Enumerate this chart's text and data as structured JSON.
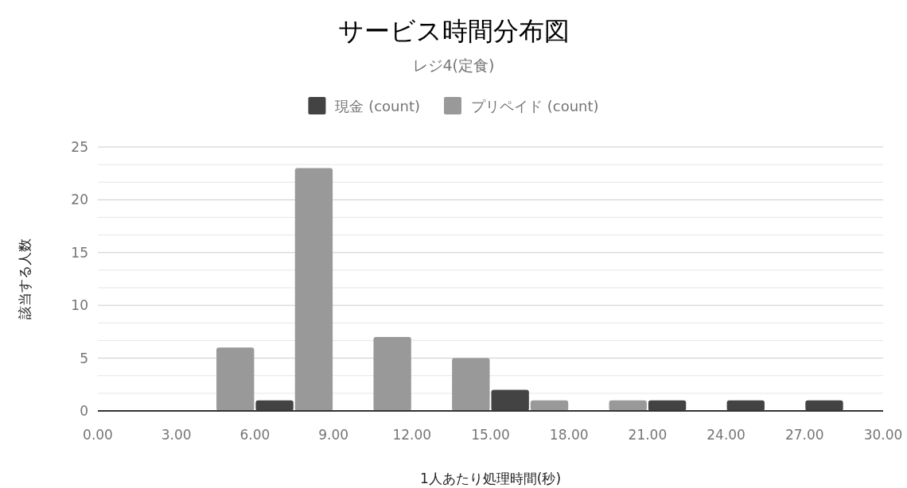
{
  "chart_data": {
    "type": "histogram",
    "title": "サービス時間分布図",
    "subtitle": "レジ4(定食)",
    "xlabel": "1人あたり処理時間(秒)",
    "ylabel": "該当する人数",
    "bins": [
      4.5,
      7.5,
      10.5,
      13.5,
      16.5,
      19.5,
      22.5,
      25.5,
      28.5
    ],
    "series": [
      {
        "name": "現金 (count)",
        "color": "#434343",
        "values": [
          1,
          0,
          0,
          2,
          0,
          1,
          1,
          1
        ]
      },
      {
        "name": "プリペイド (count)",
        "color": "#999999",
        "values": [
          6,
          23,
          7,
          5,
          1,
          1,
          0,
          0
        ]
      }
    ],
    "xlim": [
      0,
      30
    ],
    "xticks": [
      {
        "value": 0,
        "label": "0.00"
      },
      {
        "value": 3,
        "label": "3.00"
      },
      {
        "value": 6,
        "label": "6.00"
      },
      {
        "value": 9,
        "label": "9.00"
      },
      {
        "value": 12,
        "label": "12.00"
      },
      {
        "value": 15,
        "label": "15.00"
      },
      {
        "value": 18,
        "label": "18.00"
      },
      {
        "value": 21,
        "label": "21.00"
      },
      {
        "value": 24,
        "label": "24.00"
      },
      {
        "value": 27,
        "label": "27.00"
      },
      {
        "value": 30,
        "label": "30.00"
      }
    ],
    "ylim": [
      0,
      25
    ],
    "yticks": [
      0,
      5,
      10,
      15,
      20,
      25
    ],
    "grid": "y",
    "legend": "top"
  }
}
